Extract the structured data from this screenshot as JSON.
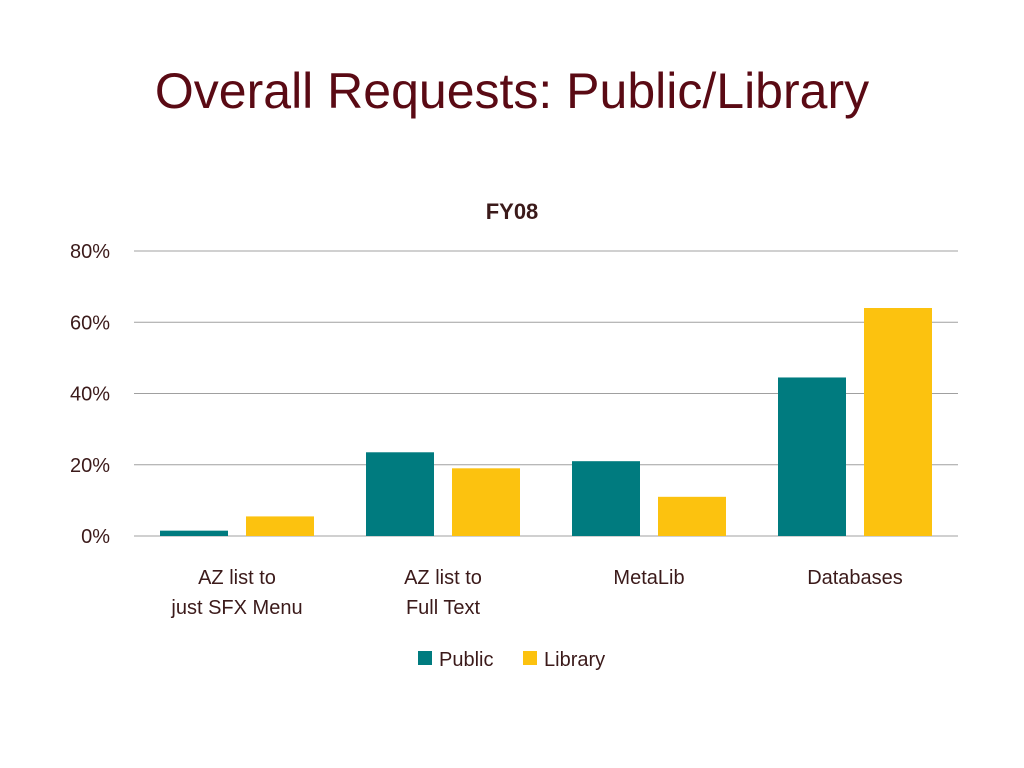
{
  "slide": {
    "title": "Overall Requests: Public/Library"
  },
  "chart_data": {
    "type": "bar",
    "title": "FY08",
    "categories": [
      [
        "AZ list to",
        "just SFX Menu"
      ],
      [
        "AZ list to",
        "Full Text"
      ],
      [
        "MetaLib"
      ],
      [
        "Databases"
      ]
    ],
    "series": [
      {
        "name": "Public",
        "color": "#007b7f",
        "values": [
          1.5,
          23.5,
          21,
          44.5
        ]
      },
      {
        "name": "Library",
        "color": "#fcc20f",
        "values": [
          5.5,
          19,
          11,
          64
        ]
      }
    ],
    "yticks": [
      "0%",
      "20%",
      "40%",
      "60%",
      "80%"
    ],
    "ylim": [
      0,
      80
    ],
    "grid": true,
    "legend": "bottom",
    "xlabel": "",
    "ylabel": ""
  },
  "colors": {
    "title": "#5a0a14",
    "text": "#3b1a1a",
    "grid": "#a0a0a0"
  }
}
